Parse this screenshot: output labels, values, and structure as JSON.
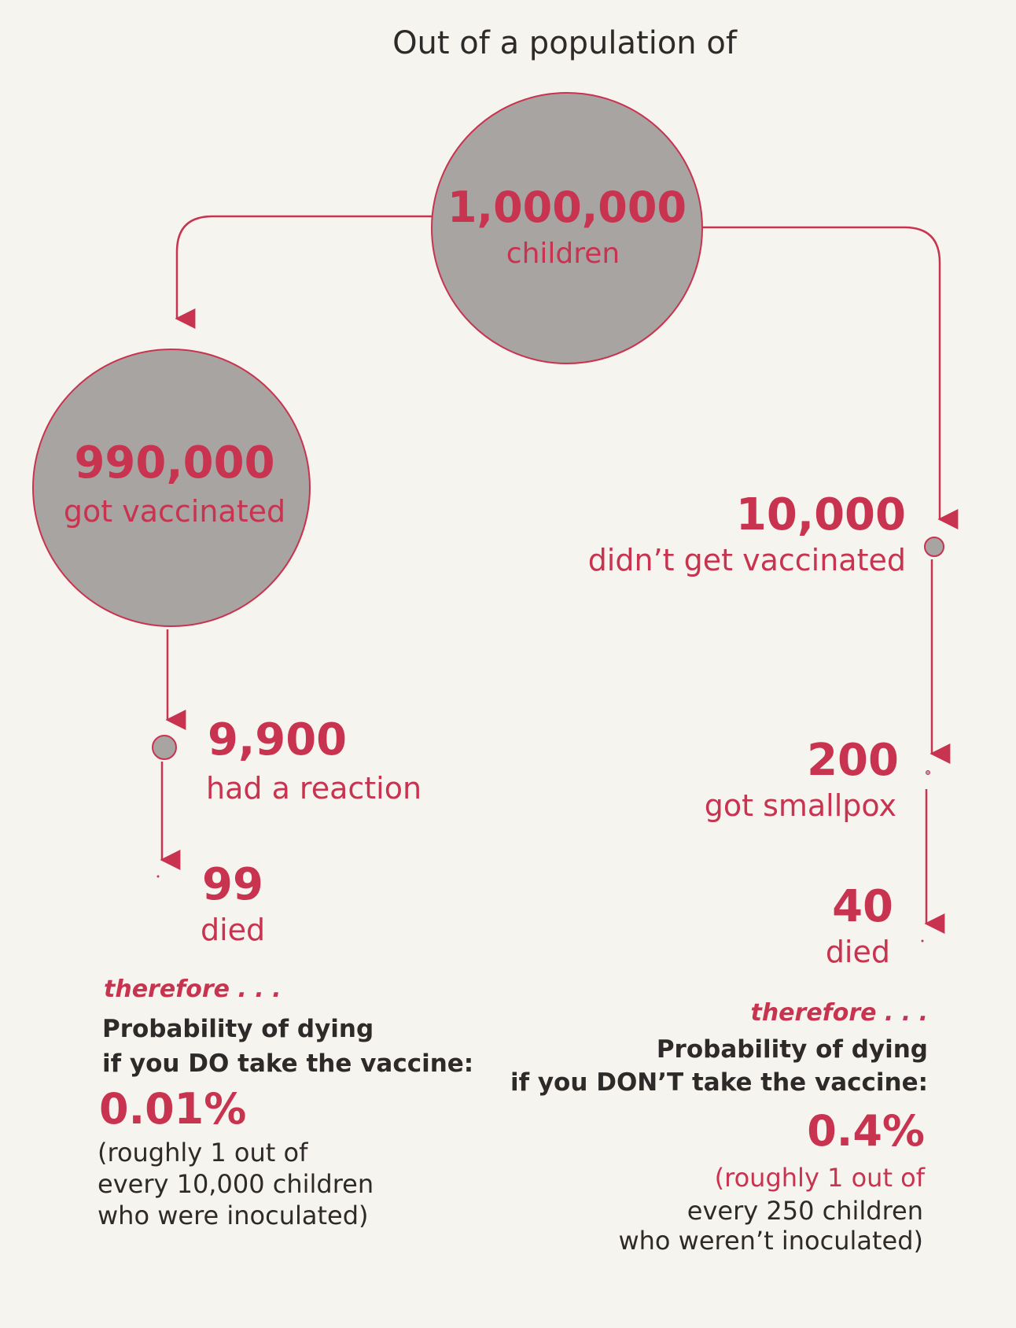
{
  "header": {
    "text": "Out of a population of"
  },
  "nodes": {
    "total": {
      "count": "1,000,000",
      "label": "children"
    },
    "vaccinated": {
      "count": "990,000",
      "label": "got vaccinated"
    },
    "unvaccinated": {
      "count": "10,000",
      "label": "didn’t get vaccinated"
    },
    "reaction": {
      "count": "9,900",
      "label": "had a reaction"
    },
    "smallpox": {
      "count": "200",
      "label": "got smallpox"
    },
    "died_vacc": {
      "count": "99",
      "label": "died"
    },
    "died_unvacc": {
      "count": "40",
      "label": "died"
    }
  },
  "left_summary": {
    "therefore": "therefore . . .",
    "line1": "Probability of dying",
    "line2": "if you DO take the vaccine:",
    "percent": "0.01%",
    "note1": "(roughly 1 out of",
    "note2": "every 10,000 children",
    "note3": "who were inoculated)"
  },
  "right_summary": {
    "therefore": "therefore . . .",
    "line1": "Probability of dying",
    "line2": "if you DON’T take the vaccine:",
    "percent": "0.4%",
    "note1": "(roughly 1 out of",
    "note2": "every 250 children",
    "note3": "who weren’t inoculated)"
  },
  "colors": {
    "accent": "#c8334f",
    "circle_fill": "#a8a4a2",
    "text": "#2f2a2a",
    "background": "#f6f4ee"
  }
}
